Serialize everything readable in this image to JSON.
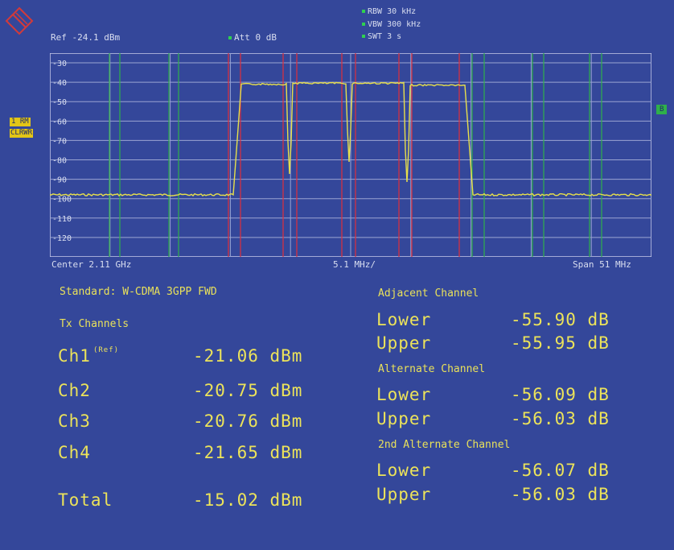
{
  "header": {
    "ref_level": "Ref -24.1 dBm",
    "attenuation": "Att  0 dB",
    "rbw": "RBW 30 kHz",
    "vbw": "VBW 300 kHz",
    "sweep_time": "SWT 3 s"
  },
  "side_labels": {
    "trace_mode": "1 RM",
    "trace_clear": "CLRWR",
    "right_marker": "B"
  },
  "y_axis": {
    "ticks": [
      "-30",
      "-40",
      "-50",
      "-60",
      "-70",
      "-80",
      "-90",
      "-100",
      "-110",
      "-120"
    ]
  },
  "x_axis": {
    "center": "Center  2.11 GHz",
    "div": "5.1 MHz/",
    "span": "Span 51 MHz"
  },
  "colors": {
    "background": "#34479a",
    "trace": "#e8e04a",
    "grid": "#9aa4d2",
    "channel_lines": "#e0303a",
    "adjacent_lines": "#2fb04a"
  },
  "chart_data": {
    "type": "line",
    "xlabel": "",
    "ylabel": "",
    "ylim": [
      -130,
      -25
    ],
    "channel_power_dbm": [
      -41,
      -40.5,
      -40.5,
      -41.5
    ],
    "noise_floor_dbm": -98
  },
  "measurements": {
    "standard": "Standard: W-CDMA 3GPP FWD",
    "tx_title": "Tx Channels",
    "channels": [
      {
        "name": "Ch1",
        "tag": "(Ref)",
        "value": "-21.06 dBm"
      },
      {
        "name": "Ch2",
        "tag": "",
        "value": "-20.75 dBm"
      },
      {
        "name": "Ch3",
        "tag": "",
        "value": "-20.76 dBm"
      },
      {
        "name": "Ch4",
        "tag": "",
        "value": "-21.65 dBm"
      }
    ],
    "total": {
      "name": "Total",
      "value": "-15.02 dBm"
    },
    "adjacent": {
      "title": "Adjacent Channel",
      "lower_label": "Lower",
      "lower": "-55.90 dB",
      "upper_label": "Upper",
      "upper": "-55.95 dB"
    },
    "alternate": {
      "title": "Alternate Channel",
      "lower_label": "Lower",
      "lower": "-56.09 dB",
      "upper_label": "Upper",
      "upper": "-56.03 dB"
    },
    "second_alternate": {
      "title": "2nd Alternate Channel",
      "lower_label": "Lower",
      "lower": "-56.07 dB",
      "upper_label": "Upper",
      "upper": "-56.03 dB"
    }
  }
}
